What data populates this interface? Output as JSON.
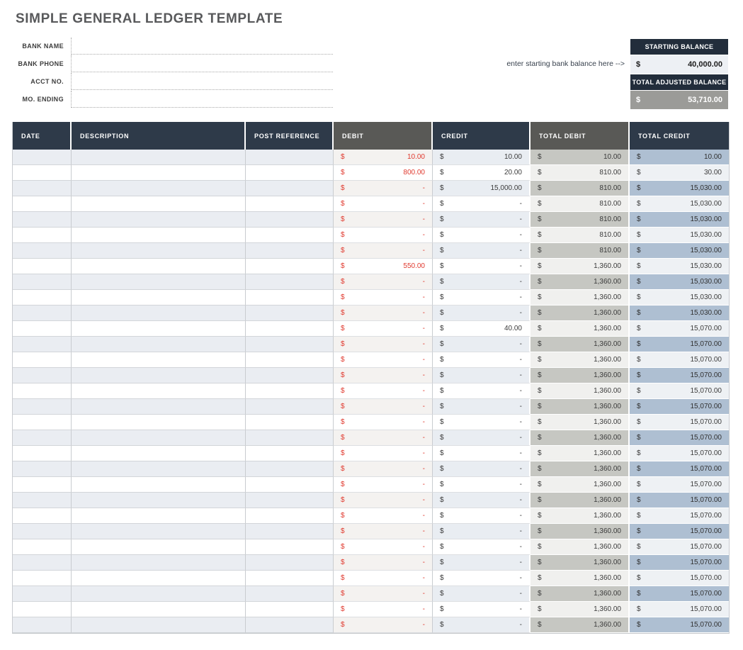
{
  "page": {
    "title": "SIMPLE GENERAL LEDGER TEMPLATE"
  },
  "form": {
    "fields": [
      {
        "label": "BANK NAME",
        "value": ""
      },
      {
        "label": "BANK PHONE",
        "value": ""
      },
      {
        "label": "ACCT NO.",
        "value": ""
      },
      {
        "label": "MO. ENDING",
        "value": ""
      }
    ]
  },
  "balance": {
    "hint": "enter starting bank balance here -->",
    "starting_label": "STARTING BALANCE",
    "starting_currency": "$",
    "starting_value": "40,000.00",
    "adjusted_label": "TOTAL ADJUSTED BALANCE",
    "adjusted_currency": "$",
    "adjusted_value": "53,710.00"
  },
  "ledger": {
    "currency": "$",
    "columns": [
      "DATE",
      "DESCRIPTION",
      "POST REFERENCE",
      "DEBIT",
      "CREDIT",
      "TOTAL DEBIT",
      "TOTAL CREDIT"
    ],
    "rows": [
      {
        "date": "",
        "description": "",
        "post_reference": "",
        "debit": "10.00",
        "credit": "10.00",
        "total_debit": "10.00",
        "total_credit": "10.00"
      },
      {
        "date": "",
        "description": "",
        "post_reference": "",
        "debit": "800.00",
        "credit": "20.00",
        "total_debit": "810.00",
        "total_credit": "30.00"
      },
      {
        "date": "",
        "description": "",
        "post_reference": "",
        "debit": "-",
        "credit": "15,000.00",
        "total_debit": "810.00",
        "total_credit": "15,030.00"
      },
      {
        "date": "",
        "description": "",
        "post_reference": "",
        "debit": "-",
        "credit": "-",
        "total_debit": "810.00",
        "total_credit": "15,030.00"
      },
      {
        "date": "",
        "description": "",
        "post_reference": "",
        "debit": "-",
        "credit": "-",
        "total_debit": "810.00",
        "total_credit": "15,030.00"
      },
      {
        "date": "",
        "description": "",
        "post_reference": "",
        "debit": "-",
        "credit": "-",
        "total_debit": "810.00",
        "total_credit": "15,030.00"
      },
      {
        "date": "",
        "description": "",
        "post_reference": "",
        "debit": "-",
        "credit": "-",
        "total_debit": "810.00",
        "total_credit": "15,030.00"
      },
      {
        "date": "",
        "description": "",
        "post_reference": "",
        "debit": "550.00",
        "credit": "-",
        "total_debit": "1,360.00",
        "total_credit": "15,030.00"
      },
      {
        "date": "",
        "description": "",
        "post_reference": "",
        "debit": "-",
        "credit": "-",
        "total_debit": "1,360.00",
        "total_credit": "15,030.00"
      },
      {
        "date": "",
        "description": "",
        "post_reference": "",
        "debit": "-",
        "credit": "-",
        "total_debit": "1,360.00",
        "total_credit": "15,030.00"
      },
      {
        "date": "",
        "description": "",
        "post_reference": "",
        "debit": "-",
        "credit": "-",
        "total_debit": "1,360.00",
        "total_credit": "15,030.00"
      },
      {
        "date": "",
        "description": "",
        "post_reference": "",
        "debit": "-",
        "credit": "40.00",
        "total_debit": "1,360.00",
        "total_credit": "15,070.00"
      },
      {
        "date": "",
        "description": "",
        "post_reference": "",
        "debit": "-",
        "credit": "-",
        "total_debit": "1,360.00",
        "total_credit": "15,070.00"
      },
      {
        "date": "",
        "description": "",
        "post_reference": "",
        "debit": "-",
        "credit": "-",
        "total_debit": "1,360.00",
        "total_credit": "15,070.00"
      },
      {
        "date": "",
        "description": "",
        "post_reference": "",
        "debit": "-",
        "credit": "-",
        "total_debit": "1,360.00",
        "total_credit": "15,070.00"
      },
      {
        "date": "",
        "description": "",
        "post_reference": "",
        "debit": "-",
        "credit": "-",
        "total_debit": "1,360.00",
        "total_credit": "15,070.00"
      },
      {
        "date": "",
        "description": "",
        "post_reference": "",
        "debit": "-",
        "credit": "-",
        "total_debit": "1,360.00",
        "total_credit": "15,070.00"
      },
      {
        "date": "",
        "description": "",
        "post_reference": "",
        "debit": "-",
        "credit": "-",
        "total_debit": "1,360.00",
        "total_credit": "15,070.00"
      },
      {
        "date": "",
        "description": "",
        "post_reference": "",
        "debit": "-",
        "credit": "-",
        "total_debit": "1,360.00",
        "total_credit": "15,070.00"
      },
      {
        "date": "",
        "description": "",
        "post_reference": "",
        "debit": "-",
        "credit": "-",
        "total_debit": "1,360.00",
        "total_credit": "15,070.00"
      },
      {
        "date": "",
        "description": "",
        "post_reference": "",
        "debit": "-",
        "credit": "-",
        "total_debit": "1,360.00",
        "total_credit": "15,070.00"
      },
      {
        "date": "",
        "description": "",
        "post_reference": "",
        "debit": "-",
        "credit": "-",
        "total_debit": "1,360.00",
        "total_credit": "15,070.00"
      },
      {
        "date": "",
        "description": "",
        "post_reference": "",
        "debit": "-",
        "credit": "-",
        "total_debit": "1,360.00",
        "total_credit": "15,070.00"
      },
      {
        "date": "",
        "description": "",
        "post_reference": "",
        "debit": "-",
        "credit": "-",
        "total_debit": "1,360.00",
        "total_credit": "15,070.00"
      },
      {
        "date": "",
        "description": "",
        "post_reference": "",
        "debit": "-",
        "credit": "-",
        "total_debit": "1,360.00",
        "total_credit": "15,070.00"
      },
      {
        "date": "",
        "description": "",
        "post_reference": "",
        "debit": "-",
        "credit": "-",
        "total_debit": "1,360.00",
        "total_credit": "15,070.00"
      },
      {
        "date": "",
        "description": "",
        "post_reference": "",
        "debit": "-",
        "credit": "-",
        "total_debit": "1,360.00",
        "total_credit": "15,070.00"
      },
      {
        "date": "",
        "description": "",
        "post_reference": "",
        "debit": "-",
        "credit": "-",
        "total_debit": "1,360.00",
        "total_credit": "15,070.00"
      },
      {
        "date": "",
        "description": "",
        "post_reference": "",
        "debit": "-",
        "credit": "-",
        "total_debit": "1,360.00",
        "total_credit": "15,070.00"
      },
      {
        "date": "",
        "description": "",
        "post_reference": "",
        "debit": "-",
        "credit": "-",
        "total_debit": "1,360.00",
        "total_credit": "15,070.00"
      },
      {
        "date": "",
        "description": "",
        "post_reference": "",
        "debit": "-",
        "credit": "-",
        "total_debit": "1,360.00",
        "total_credit": "15,070.00"
      }
    ]
  },
  "colors": {
    "header_navy": "#2e3a49",
    "header_gray": "#595956",
    "balance_navy": "#222d3b",
    "debit_red": "#e0392e",
    "adjusted_value_gray": "#9b9b98",
    "row_tint": "#eaedf2",
    "total_debit_tint": "#c6c7c2",
    "total_credit_tint": "#aebfd2"
  }
}
